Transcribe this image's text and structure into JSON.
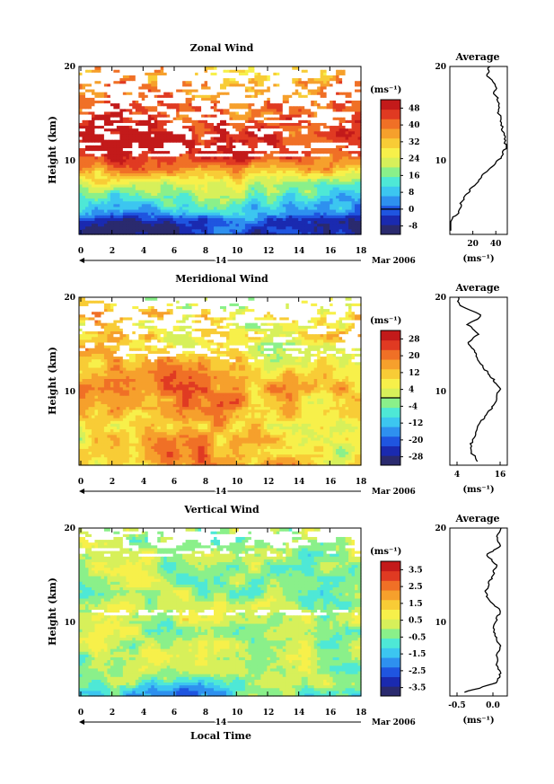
{
  "figure": {
    "time_axis_label": "Local Time",
    "date_day": "14",
    "date_month_year": "Mar 2006"
  },
  "colors": {
    "palette": [
      "#2a2a6e",
      "#1a2ab0",
      "#1f55e0",
      "#2e90ef",
      "#3cc6f0",
      "#4ee8d6",
      "#8af08a",
      "#d7f05a",
      "#f7f04a",
      "#f8cc36",
      "#f6a02c",
      "#f07026",
      "#e03a22",
      "#c31a1a"
    ],
    "missing": "#ffffff"
  },
  "chart_data": [
    {
      "type": "heatmap",
      "title": "Zonal Wind",
      "ylabel": "Height (km)",
      "xlim": [
        0,
        18
      ],
      "ylim": [
        1.6,
        20
      ],
      "x_ticks": [
        "0",
        "2",
        "4",
        "6",
        "8",
        "10",
        "12",
        "14",
        "16",
        "18"
      ],
      "y_ticks": [
        "10",
        "20"
      ],
      "colorbar": {
        "unit": "(ms⁻¹)",
        "ticks": [
          "-8",
          "0",
          "8",
          "16",
          "24",
          "32",
          "40",
          "48"
        ],
        "range": [
          -12,
          52
        ],
        "zero_line": 0
      },
      "profile_height_km": [
        2,
        3,
        4,
        5,
        6,
        7,
        8,
        9,
        10,
        11,
        12,
        13,
        14,
        15,
        16,
        17,
        18,
        19,
        20
      ],
      "mean_profile": [
        -4,
        0,
        7,
        10,
        15,
        21,
        28,
        37,
        44,
        48,
        48,
        46,
        45,
        42,
        43,
        39,
        40,
        33,
        34
      ],
      "profile": {
        "title": "Average",
        "xticks": [
          "20",
          "40"
        ],
        "xlim": [
          0,
          50
        ],
        "unit": "(ms⁻¹)"
      },
      "diurnal_amp": 3,
      "spot_low": {
        "x": 4,
        "y": 2.2,
        "amp": -10
      },
      "missing_band": [
        12,
        20
      ]
    },
    {
      "type": "heatmap",
      "title": "Meridional Wind",
      "ylabel": "Height (km)",
      "xlim": [
        0,
        18
      ],
      "ylim": [
        1.6,
        20
      ],
      "x_ticks": [
        "0",
        "2",
        "4",
        "6",
        "8",
        "10",
        "12",
        "14",
        "16",
        "18"
      ],
      "y_ticks": [
        "10",
        "20"
      ],
      "colorbar": {
        "unit": "(ms⁻¹)",
        "ticks": [
          "-28",
          "-20",
          "-12",
          "-4",
          "4",
          "12",
          "20",
          "28"
        ],
        "range": [
          -32,
          32
        ],
        "zero_line": 0
      },
      "profile_height_km": [
        2,
        3,
        4,
        5,
        6,
        7,
        8,
        9,
        10,
        11,
        12,
        13,
        14,
        15,
        16,
        17,
        18,
        19,
        20
      ],
      "mean_profile": [
        10,
        8,
        8,
        9,
        10,
        12,
        14,
        15,
        16,
        14,
        12,
        10,
        9,
        7,
        10,
        7,
        11,
        5,
        4
      ],
      "profile": {
        "title": "Average",
        "xticks": [
          "4",
          "16"
        ],
        "xlim": [
          2,
          18
        ],
        "unit": "(ms⁻¹)"
      },
      "diurnal_amp": 4,
      "spot_low": {
        "x": 6,
        "y": 3,
        "amp": 8
      },
      "missing_band": [
        13,
        20
      ]
    },
    {
      "type": "heatmap",
      "title": "Vertical Wind",
      "ylabel": "Height (km)",
      "xlim": [
        0,
        18
      ],
      "ylim": [
        1.6,
        20
      ],
      "x_ticks": [
        "0",
        "2",
        "4",
        "6",
        "8",
        "10",
        "12",
        "14",
        "16",
        "18"
      ],
      "y_ticks": [
        "10",
        "20"
      ],
      "colorbar": {
        "unit": "(ms⁻¹)",
        "ticks": [
          "-3.5",
          "-2.5",
          "-1.5",
          "-0.5",
          "0.5",
          "1.5",
          "2.5",
          "3.5"
        ],
        "range": [
          -4,
          4
        ],
        "zero_line": null
      },
      "profile_height_km": [
        2,
        3,
        4,
        5,
        6,
        7,
        8,
        9,
        10,
        11,
        12,
        13,
        14,
        15,
        16,
        17,
        18,
        19,
        20
      ],
      "mean_profile": [
        -0.4,
        0.05,
        0.1,
        0.05,
        0.05,
        0.1,
        0.05,
        0.0,
        0.05,
        0.1,
        -0.05,
        -0.1,
        -0.05,
        0.0,
        0.05,
        -0.1,
        0.1,
        0.05,
        0.1
      ],
      "profile": {
        "title": "Average",
        "xticks": [
          "-0.5",
          "0.0"
        ],
        "xlim": [
          -0.6,
          0.2
        ],
        "unit": "(ms⁻¹)"
      },
      "diurnal_amp": 0.1,
      "spot_low": {
        "x": 6.5,
        "y": 2,
        "amp": -2.5
      },
      "missing_band": [
        17,
        20
      ]
    }
  ]
}
